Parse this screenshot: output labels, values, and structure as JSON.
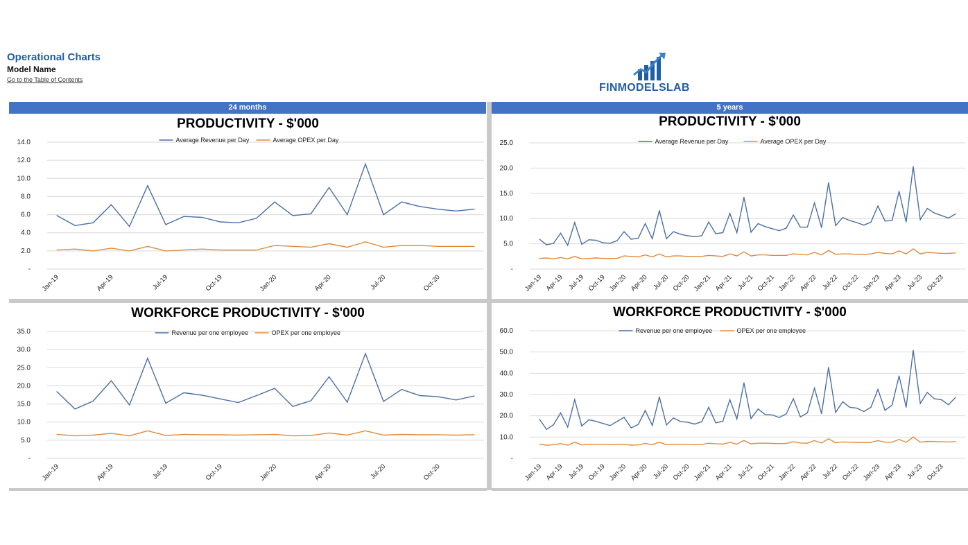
{
  "header": {
    "title": "Operational Charts",
    "model_name": "Model Name",
    "toc_link": "Go to the Table of Contents"
  },
  "logo": {
    "text": "FINMODELSLAB",
    "icon": "bar-chart-growth-icon"
  },
  "bands": {
    "left": "24 months",
    "right": "5 years"
  },
  "colors": {
    "band": "#4472c4",
    "revenue": "#4a6fa5",
    "opex": "#e08a3c",
    "title_blue": "#1f5fa6"
  },
  "chart_data": [
    {
      "id": "prod24",
      "type": "line",
      "title": "PRODUCTIVITY - $'000",
      "x_tick_labels": [
        "Jan-19",
        "Apr-19",
        "Jul-19",
        "Oct-19",
        "Jan-20",
        "Apr-20",
        "Jul-20",
        "Oct-20"
      ],
      "y_tick_labels": [
        "-",
        "2.0",
        "4.0",
        "6.0",
        "8.0",
        "10.0",
        "12.0",
        "14.0"
      ],
      "ylim": [
        0,
        14
      ],
      "tick_every": 3,
      "grid": true,
      "legend": "top-center",
      "series": [
        {
          "name": "Average Revenue per Day",
          "color": "#4a6fa5",
          "values": [
            5.9,
            4.8,
            5.1,
            7.1,
            4.7,
            9.2,
            4.9,
            5.8,
            5.7,
            5.2,
            5.1,
            5.6,
            7.4,
            5.9,
            6.1,
            9.0,
            6.0,
            11.6,
            6.0,
            7.4,
            6.9,
            6.6,
            6.4,
            6.6
          ]
        },
        {
          "name": "Average OPEX per Day",
          "color": "#e08a3c",
          "values": [
            2.1,
            2.2,
            2.0,
            2.3,
            2.0,
            2.5,
            2.0,
            2.1,
            2.2,
            2.1,
            2.1,
            2.1,
            2.6,
            2.5,
            2.4,
            2.8,
            2.4,
            3.0,
            2.4,
            2.6,
            2.6,
            2.5,
            2.5,
            2.5
          ]
        }
      ]
    },
    {
      "id": "prod60",
      "type": "line",
      "title": "PRODUCTIVITY - $'000",
      "x_tick_labels": [
        "Jan-19",
        "Apr-19",
        "Jul-19",
        "Oct-19",
        "Jan-20",
        "Apr-20",
        "Jul-20",
        "Oct-20",
        "Jan-21",
        "Apr-21",
        "Jul-21",
        "Oct-21",
        "Jan-22",
        "Apr-22",
        "Jul-22",
        "Oct-22",
        "Jan-23",
        "Apr-23",
        "Jul-23",
        "Oct-23"
      ],
      "y_tick_labels": [
        "-",
        "5.0",
        "10.0",
        "15.0",
        "20.0",
        "25.0"
      ],
      "ylim": [
        0,
        25
      ],
      "tick_every": 3,
      "grid": true,
      "legend": "top-center",
      "series": [
        {
          "name": "Average Revenue per Day",
          "color": "#4a6fa5",
          "values": [
            5.9,
            4.8,
            5.1,
            7.1,
            4.7,
            9.2,
            4.9,
            5.8,
            5.7,
            5.2,
            5.1,
            5.6,
            7.4,
            5.9,
            6.1,
            9.0,
            6.0,
            11.6,
            6.0,
            7.4,
            6.9,
            6.6,
            6.4,
            6.6,
            9.3,
            7.0,
            7.2,
            11.0,
            7.2,
            14.2,
            7.3,
            9.0,
            8.4,
            8.0,
            7.6,
            8.1,
            10.7,
            8.3,
            8.3,
            13.1,
            8.2,
            17.1,
            8.6,
            10.2,
            9.6,
            9.2,
            8.7,
            9.3,
            12.5,
            9.5,
            9.6,
            15.4,
            9.3,
            20.3,
            9.8,
            12.0,
            11.1,
            10.6,
            10.1,
            10.9
          ]
        },
        {
          "name": "Average OPEX per Day",
          "color": "#e08a3c",
          "values": [
            2.1,
            2.2,
            2.0,
            2.3,
            2.0,
            2.5,
            2.0,
            2.1,
            2.2,
            2.1,
            2.1,
            2.1,
            2.6,
            2.5,
            2.4,
            2.8,
            2.4,
            3.0,
            2.4,
            2.6,
            2.6,
            2.5,
            2.5,
            2.5,
            2.7,
            2.6,
            2.5,
            3.0,
            2.6,
            3.4,
            2.6,
            2.8,
            2.8,
            2.7,
            2.7,
            2.7,
            3.0,
            2.9,
            2.8,
            3.3,
            2.8,
            3.7,
            2.9,
            3.0,
            3.0,
            2.9,
            2.9,
            3.0,
            3.3,
            3.1,
            3.0,
            3.6,
            3.0,
            4.0,
            3.0,
            3.3,
            3.2,
            3.1,
            3.1,
            3.2
          ]
        }
      ]
    },
    {
      "id": "work24",
      "type": "line",
      "title": "WORKFORCE PRODUCTIVITY - $'000",
      "x_tick_labels": [
        "Jan-19",
        "Apr-19",
        "Jul-19",
        "Oct-19",
        "Jan-20",
        "Apr-20",
        "Jul-20",
        "Oct-20"
      ],
      "y_tick_labels": [
        "-",
        "5.0",
        "10.0",
        "15.0",
        "20.0",
        "25.0",
        "30.0",
        "35.0"
      ],
      "ylim": [
        0,
        35
      ],
      "tick_every": 3,
      "grid": true,
      "legend": "top-center",
      "series": [
        {
          "name": "Revenue per one employee",
          "color": "#4a6fa5",
          "values": [
            18.4,
            13.6,
            15.8,
            21.4,
            14.7,
            27.6,
            15.2,
            18.1,
            17.4,
            16.4,
            15.4,
            17.3,
            19.3,
            14.3,
            15.9,
            22.5,
            15.5,
            28.9,
            15.7,
            19.0,
            17.3,
            17.0,
            16.1,
            17.2
          ]
        },
        {
          "name": "OPEX per one employee",
          "color": "#e08a3c",
          "values": [
            6.6,
            6.2,
            6.4,
            6.9,
            6.2,
            7.6,
            6.3,
            6.6,
            6.5,
            6.5,
            6.4,
            6.5,
            6.6,
            6.2,
            6.3,
            7.0,
            6.4,
            7.6,
            6.4,
            6.6,
            6.5,
            6.5,
            6.4,
            6.5
          ]
        }
      ]
    },
    {
      "id": "work60",
      "type": "line",
      "title": "WORKFORCE PRODUCTIVITY - $'000",
      "x_tick_labels": [
        "Jan-19",
        "Apr-19",
        "Jul-19",
        "Oct-19",
        "Jan-20",
        "Apr-20",
        "Jul-20",
        "Oct-20",
        "Jan-21",
        "Apr-21",
        "Jul-21",
        "Oct-21",
        "Jan-22",
        "Apr-22",
        "Jul-22",
        "Oct-22",
        "Jan-23",
        "Apr-23",
        "Jul-23",
        "Oct-23"
      ],
      "y_tick_labels": [
        "-",
        "10.0",
        "20.0",
        "30.0",
        "40.0",
        "50.0",
        "60.0"
      ],
      "ylim": [
        0,
        60
      ],
      "tick_every": 3,
      "grid": true,
      "legend": "top-center",
      "series": [
        {
          "name": "Revenue per one employee",
          "color": "#4a6fa5",
          "values": [
            18.4,
            13.6,
            15.8,
            21.4,
            14.7,
            27.6,
            15.2,
            18.1,
            17.4,
            16.4,
            15.4,
            17.3,
            19.3,
            14.3,
            15.9,
            22.5,
            15.5,
            28.9,
            15.7,
            19.0,
            17.3,
            17.0,
            16.1,
            17.2,
            24.0,
            16.7,
            17.4,
            27.6,
            18.5,
            35.5,
            18.7,
            23.2,
            20.6,
            20.4,
            19.2,
            20.9,
            28.0,
            19.5,
            21.4,
            33.0,
            21.0,
            42.8,
            21.6,
            26.6,
            24.0,
            23.6,
            22.0,
            24.0,
            32.4,
            22.6,
            25.0,
            38.8,
            24.0,
            50.8,
            25.8,
            31.0,
            28.0,
            27.6,
            25.2,
            28.6
          ]
        },
        {
          "name": "OPEX per one employee",
          "color": "#e08a3c",
          "values": [
            6.6,
            6.2,
            6.4,
            6.9,
            6.2,
            7.6,
            6.3,
            6.6,
            6.5,
            6.5,
            6.4,
            6.5,
            6.6,
            6.2,
            6.3,
            7.0,
            6.4,
            7.6,
            6.4,
            6.6,
            6.5,
            6.5,
            6.4,
            6.5,
            7.1,
            6.8,
            6.7,
            7.5,
            6.7,
            8.4,
            6.8,
            7.1,
            7.1,
            7.0,
            6.9,
            7.0,
            7.8,
            7.2,
            7.1,
            8.3,
            7.2,
            9.2,
            7.3,
            7.7,
            7.6,
            7.5,
            7.4,
            7.5,
            8.3,
            7.6,
            7.6,
            8.9,
            7.5,
            10.0,
            7.6,
            8.0,
            7.9,
            7.8,
            7.7,
            7.9
          ]
        }
      ]
    }
  ]
}
